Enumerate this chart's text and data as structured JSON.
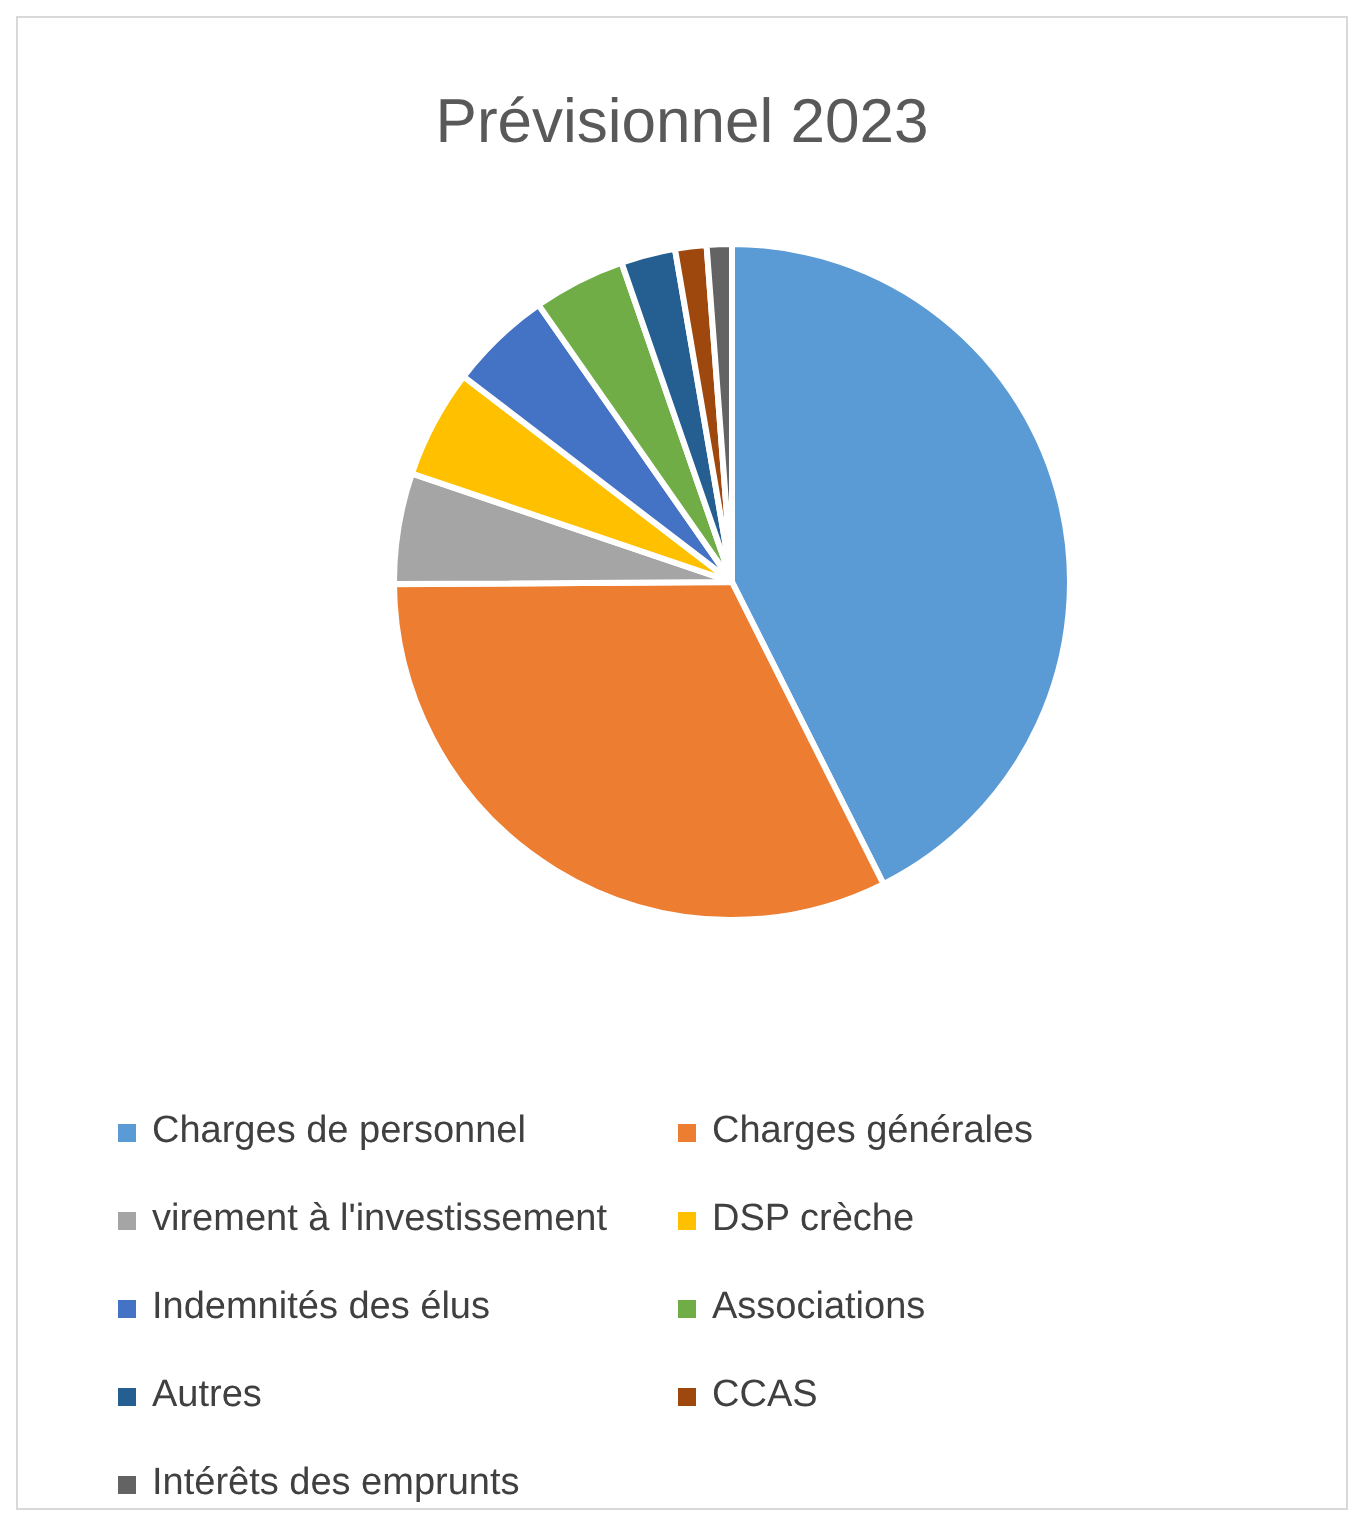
{
  "chart_data": {
    "type": "pie",
    "title": "Prévisionnel 2023",
    "categories": [
      "Charges de personnel",
      "Charges générales",
      "virement à l'investissement",
      "DSP crèche",
      "Indemnités des élus",
      "Associations",
      "Autres",
      "CCAS",
      "Intérêts des emprunts"
    ],
    "values": [
      42.6,
      32.3,
      5.3,
      5.2,
      4.9,
      4.4,
      2.6,
      1.5,
      1.2
    ],
    "colors": [
      "#5b9bd5",
      "#ed7d31",
      "#a5a5a5",
      "#ffc000",
      "#4472c4",
      "#70ad47",
      "#255e91",
      "#9e480e",
      "#636363"
    ],
    "legend": "bottom"
  }
}
